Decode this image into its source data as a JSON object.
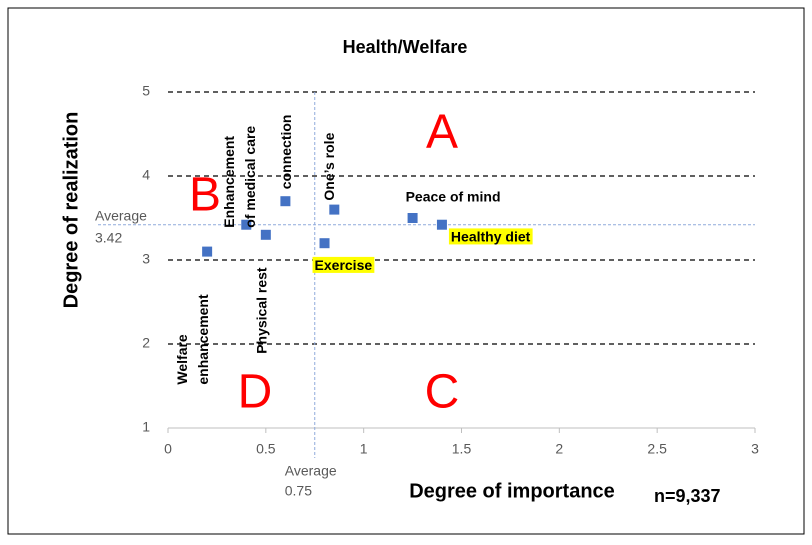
{
  "chart_data": {
    "type": "scatter",
    "title": "Health/Welfare",
    "x_label": "Degree of importance",
    "y_label": "Degree of realization",
    "color": "#4472c4",
    "points": [
      {
        "x": 0.2,
        "y": 3.1,
        "label": [
          "Welfare",
          "enhancement"
        ]
      },
      {
        "x": 0.4,
        "y": 3.42,
        "label": [
          "Enhancement",
          "of medical care"
        ]
      },
      {
        "x": 0.5,
        "y": 3.3,
        "label": [
          "Physical rest"
        ]
      },
      {
        "x": 0.6,
        "y": 3.7,
        "label": [
          "connection"
        ]
      },
      {
        "x": 0.8,
        "y": 3.2,
        "label": [
          "Exercise"
        ],
        "highlight": "#ffff00"
      },
      {
        "x": 0.85,
        "y": 3.6,
        "label": [
          "One’s role"
        ]
      },
      {
        "x": 1.25,
        "y": 3.5,
        "label": [
          "Peace of mind"
        ]
      },
      {
        "x": 1.4,
        "y": 3.42,
        "label": [
          "Healthy diet"
        ],
        "highlight": "#ffff00"
      }
    ],
    "xlim": [
      0,
      3
    ],
    "xticks": [
      0,
      0.5,
      1,
      1.5,
      2,
      2.5,
      3
    ],
    "ylim": [
      1,
      5
    ],
    "yticks": [
      1,
      2,
      3,
      4,
      5
    ],
    "grid": true,
    "average_label": "Average",
    "x_average": 0.75,
    "y_average": 3.42,
    "quadrants": [
      "A",
      "B",
      "C",
      "D"
    ],
    "quadrant_color": "#ff0000",
    "note": "n=9,337"
  }
}
